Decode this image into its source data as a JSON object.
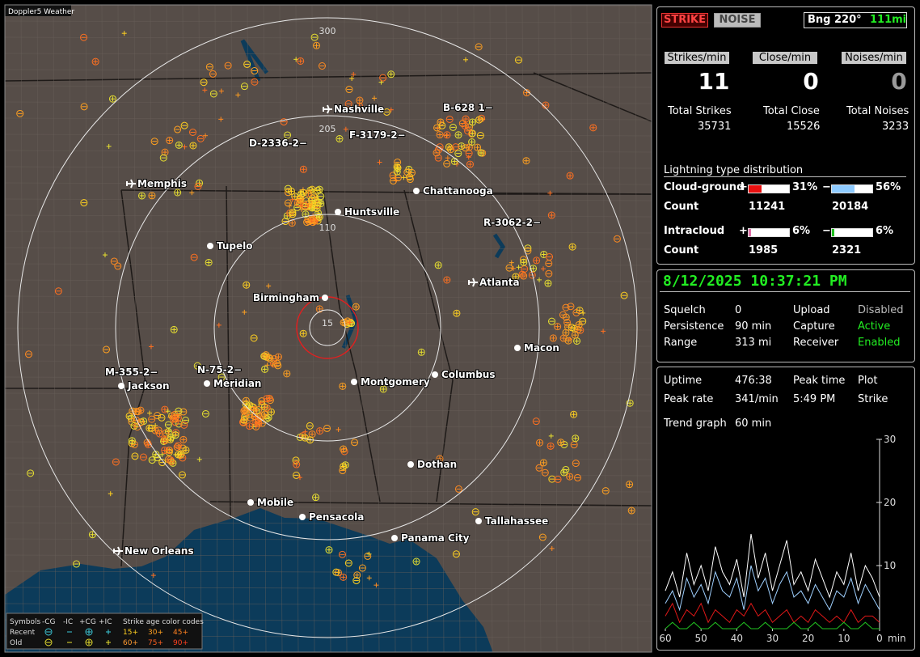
{
  "map": {
    "title": "Doppler5 Weather",
    "range_labels": [
      "300",
      "205",
      "110",
      "15"
    ],
    "cities": [
      "Nashville",
      "Memphis",
      "Chattanooga",
      "Huntsville",
      "Tupelo",
      "Birmingham",
      "Atlanta",
      "Macon",
      "Montgomery",
      "Columbus",
      "Meridian",
      "Jackson",
      "Dothan",
      "Mobile",
      "Pensacola",
      "Tallahassee",
      "Panama City",
      "New Orleans"
    ],
    "storm_labels": [
      "B-628 1−",
      "D-2336-2−",
      "F-3179-2−",
      "R-3062-2−",
      "M-355-2−",
      "N-75-2−"
    ],
    "legend": {
      "symbols": "Symbols",
      "neg_cg": "-CG",
      "neg_ic": "-IC",
      "pos_cg": "+CG",
      "pos_ic": "+IC",
      "age_title": "Strike age color codes",
      "recent": "Recent",
      "old": "Old",
      "ages": [
        "15+",
        "30+",
        "45+",
        "60+",
        "75+",
        "90+"
      ]
    }
  },
  "header": {
    "strike": "STRIKE",
    "noise": "NOISE",
    "bearing": "Bng 220°",
    "distance": "111mi"
  },
  "rates": {
    "labels": [
      "Strikes/min",
      "Close/min",
      "Noises/min"
    ],
    "values": [
      11,
      0,
      0
    ]
  },
  "totals": {
    "labels": [
      "Total Strikes",
      "Total Close",
      "Total Noises"
    ],
    "values": [
      35731,
      15526,
      3233
    ]
  },
  "distribution": {
    "title": "Lightning type distribution",
    "plus": "+",
    "minus": "−",
    "count_label": "Count",
    "rows": [
      {
        "label": "Cloud-ground",
        "values": [
          31,
          56
        ],
        "value_labels": [
          "31%",
          "56%"
        ],
        "colors": [
          "#e81010",
          "#8ecbff"
        ],
        "counts": [
          11241,
          20184
        ]
      },
      {
        "label": "Intracloud",
        "values": [
          6,
          6
        ],
        "value_labels": [
          "6%",
          "6%"
        ],
        "colors": [
          "#e070a8",
          "#20c020"
        ],
        "counts": [
          1985,
          2321
        ]
      }
    ]
  },
  "status": {
    "datetime": "8/12/2025 10:37:21 PM",
    "rows": [
      [
        "Squelch",
        0,
        "Upload",
        "Disabled"
      ],
      [
        "Persistence",
        "90 min",
        "Capture",
        "Active"
      ],
      [
        "Range",
        "313 mi",
        "Receiver",
        "Enabled"
      ]
    ]
  },
  "stats": {
    "rows": [
      [
        "Uptime",
        "476:38",
        "Peak time",
        "Plot"
      ],
      [
        "Peak rate",
        "341/min",
        "5:49 PM",
        "Strike"
      ]
    ],
    "trend_label": "Trend graph",
    "trend_window": "60 min"
  },
  "chart_data": {
    "type": "line",
    "xlabel": "min",
    "x": [
      60,
      58,
      56,
      54,
      52,
      50,
      48,
      46,
      44,
      42,
      40,
      38,
      36,
      34,
      32,
      30,
      28,
      26,
      24,
      22,
      20,
      18,
      16,
      14,
      12,
      10,
      8,
      6,
      4,
      2,
      0
    ],
    "xlim": [
      60,
      0
    ],
    "xticks": [
      60,
      50,
      40,
      30,
      20,
      10,
      0
    ],
    "ylim": [
      0,
      30
    ],
    "yticks": [
      10,
      20,
      30
    ],
    "series": [
      {
        "color": "#ffffff",
        "values": [
          6,
          9,
          5,
          12,
          7,
          10,
          6,
          13,
          9,
          7,
          11,
          5,
          15,
          8,
          12,
          6,
          10,
          14,
          7,
          9,
          6,
          11,
          8,
          5,
          9,
          7,
          12,
          6,
          10,
          8,
          5
        ]
      },
      {
        "color": "#9fd0ff",
        "values": [
          4,
          6,
          3,
          8,
          5,
          7,
          4,
          9,
          6,
          5,
          8,
          3,
          10,
          6,
          8,
          4,
          7,
          9,
          5,
          6,
          4,
          7,
          5,
          3,
          6,
          5,
          8,
          4,
          7,
          5,
          3
        ]
      },
      {
        "color": "#e01818",
        "values": [
          2,
          4,
          1,
          3,
          2,
          4,
          1,
          3,
          2,
          1,
          3,
          2,
          4,
          2,
          3,
          1,
          2,
          3,
          1,
          2,
          1,
          3,
          2,
          1,
          2,
          1,
          3,
          1,
          2,
          2,
          1
        ]
      },
      {
        "color": "#20c020",
        "values": [
          0,
          1,
          0,
          0,
          1,
          0,
          0,
          1,
          0,
          0,
          0,
          1,
          0,
          0,
          1,
          0,
          0,
          0,
          1,
          0,
          0,
          1,
          0,
          0,
          0,
          1,
          0,
          0,
          1,
          0,
          0
        ]
      }
    ]
  }
}
